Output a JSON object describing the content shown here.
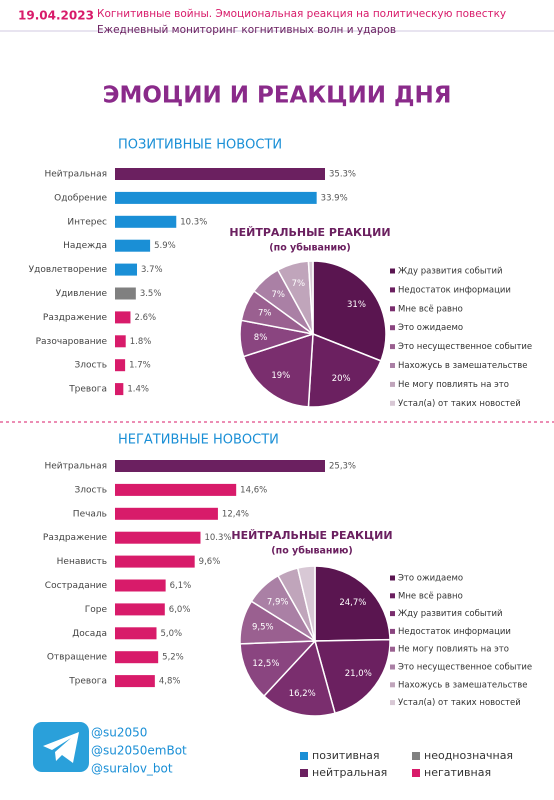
{
  "header": {
    "date": "19.04.2023",
    "line1": "Когнитивные войны. Эмоциональная реакция на политическую повестку",
    "line2": "Ежедневный мониторинг когнитивных волн и ударов",
    "title": "ЭМОЦИИ И РЕАКЦИИ ДНЯ"
  },
  "chart_data": [
    {
      "type": "bar",
      "title": "ПОЗИТИВНЫЕ НОВОСТИ",
      "categories": [
        "Нейтральная",
        "Одобрение",
        "Интерес",
        "Надежда",
        "Удовлетворение",
        "Удивление",
        "Раздражение",
        "Разочарование",
        "Злость",
        "Тревога"
      ],
      "values": [
        35.3,
        33.9,
        10.3,
        5.9,
        3.7,
        3.5,
        2.6,
        1.8,
        1.7,
        1.4
      ],
      "value_labels": [
        "35.3%",
        "33.9%",
        "10.3%",
        "5.9%",
        "3.7%",
        "3.5%",
        "2.6%",
        "1.8%",
        "1.7%",
        "1.4%"
      ],
      "colors": [
        "#6b2060",
        "#1a8fd6",
        "#1a8fd6",
        "#1a8fd6",
        "#1a8fd6",
        "#808080",
        "#d81b6a",
        "#d81b6a",
        "#d81b6a",
        "#d81b6a"
      ]
    },
    {
      "type": "pie",
      "title": "НЕЙТРАЛЬНЫЕ РЕАКЦИИ",
      "subtitle": "(по убыванию)",
      "categories": [
        "Жду развития событий",
        "Недостаток информации",
        "Мне всё равно",
        "Это ожидаемо",
        "Это несущественное событие",
        "Нахожусь в замешательстве",
        "Не могу повлиять на это",
        "Устал(а) от таких новостей"
      ],
      "values": [
        31,
        20,
        19,
        8,
        7,
        7,
        7,
        1
      ],
      "value_labels": [
        "31%",
        "20%",
        "19%",
        "8%",
        "7%",
        "7%",
        "7%",
        null
      ],
      "colors": [
        "#5a1550",
        "#6b2060",
        "#7a2e6e",
        "#8a4580",
        "#9a6090",
        "#aa80a5",
        "#c0a5bb",
        "#d8c8d5"
      ]
    },
    {
      "type": "bar",
      "title": "НЕГАТИВНЫЕ НОВОСТИ",
      "categories": [
        "Нейтральная",
        "Злость",
        "Печаль",
        "Раздражение",
        "Ненависть",
        "Сострадание",
        "Горе",
        "Досада",
        "Отвращение",
        "Тревога"
      ],
      "values": [
        25.3,
        14.6,
        12.4,
        10.3,
        9.6,
        6.1,
        6.0,
        5.0,
        5.2,
        4.8
      ],
      "value_labels": [
        "25,3%",
        "14,6%",
        "12,4%",
        "10.3%",
        "9,6%",
        "6,1%",
        "6,0%",
        "5,0%",
        "5,2%",
        "4,8%"
      ],
      "colors": [
        "#6b2060",
        "#d81b6a",
        "#d81b6a",
        "#d81b6a",
        "#d81b6a",
        "#d81b6a",
        "#d81b6a",
        "#d81b6a",
        "#d81b6a",
        "#d81b6a"
      ]
    },
    {
      "type": "pie",
      "title": "НЕЙТРАЛЬНЫЕ РЕАКЦИИ",
      "subtitle": "(по убыванию)",
      "categories": [
        "Это ожидаемо",
        "Мне всё равно",
        "Жду развития событий",
        "Недостаток информации",
        "Не могу повлиять на это",
        "Это несущественное событие",
        "Нахожусь в замешательстве",
        "Устал(а) от таких новостей"
      ],
      "values": [
        24.7,
        21.0,
        16.2,
        12.5,
        9.5,
        7.9,
        4.5,
        3.7
      ],
      "value_labels": [
        "24,7%",
        "21,0%",
        "16,2%",
        "12,5%",
        "9,5%",
        "7,9%",
        null,
        null
      ],
      "colors": [
        "#5a1550",
        "#6b2060",
        "#7a2e6e",
        "#8a4580",
        "#9a6090",
        "#aa80a5",
        "#c0a5bb",
        "#d8c8d5"
      ]
    }
  ],
  "footer": {
    "handles": [
      "@su2050",
      "@su2050emBot",
      "@suralov_bot"
    ],
    "legend": [
      {
        "name": "позитивная",
        "color": "#1a8fd6"
      },
      {
        "name": "неоднозначная",
        "color": "#808080"
      },
      {
        "name": "нейтральная",
        "color": "#6b2060"
      },
      {
        "name": "негативная",
        "color": "#d81b6a"
      }
    ]
  }
}
